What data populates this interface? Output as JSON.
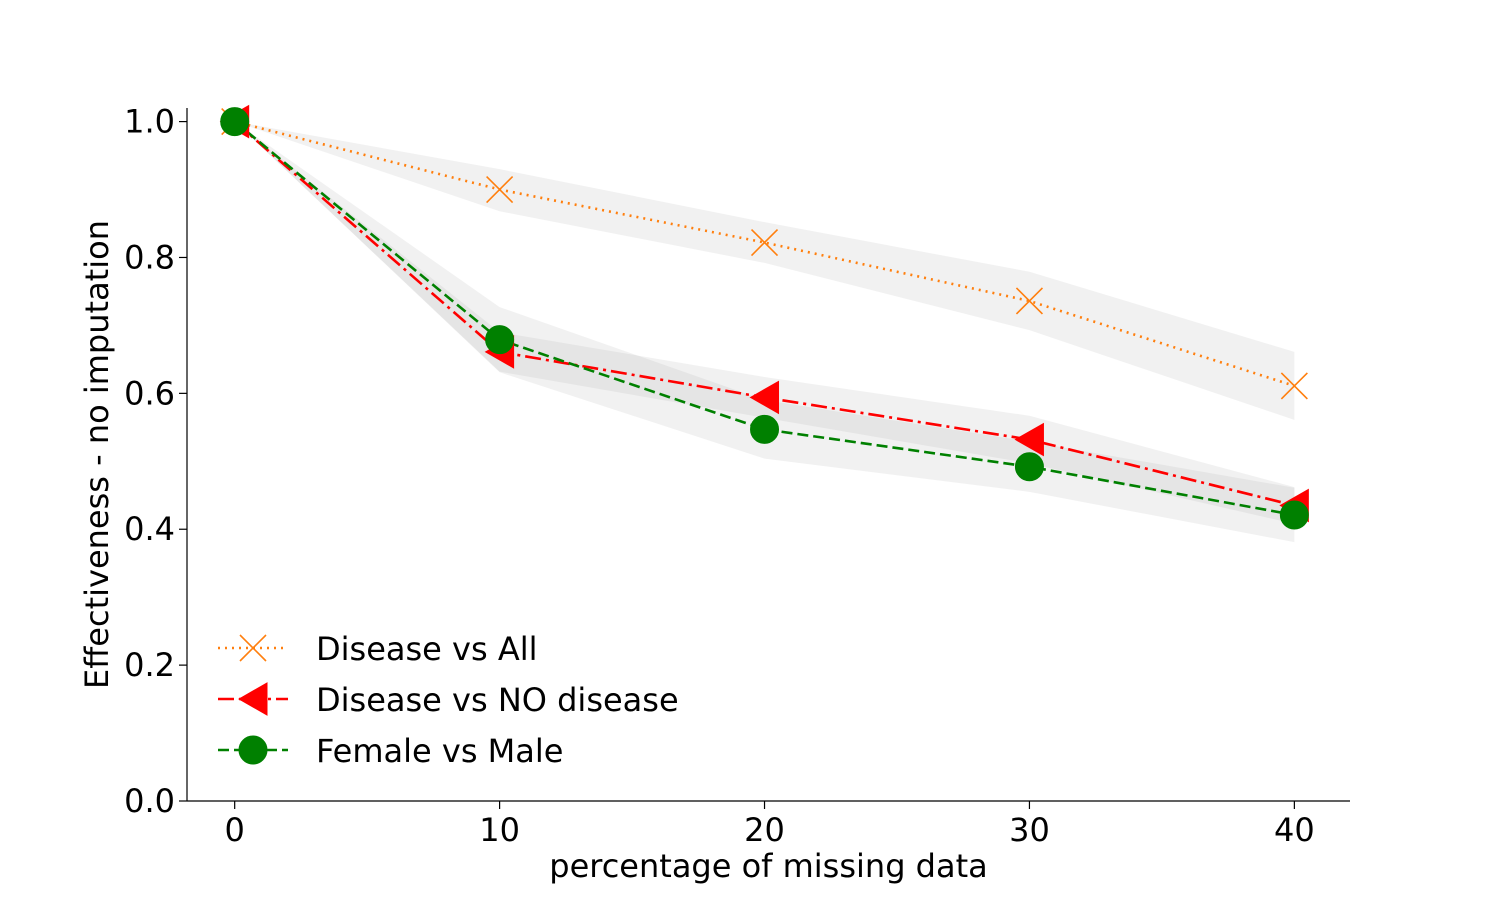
{
  "chart_data": {
    "type": "line",
    "title": "",
    "xlabel": "percentage of missing data",
    "ylabel": "Effectiveness - no imputation",
    "x": [
      0,
      10,
      20,
      30,
      40
    ],
    "x_ticks": [
      "0",
      "10",
      "20",
      "30",
      "40"
    ],
    "y_ticks": [
      "0.0",
      "0.2",
      "0.4",
      "0.6",
      "0.8",
      "1.0"
    ],
    "xlim": [
      -1.8,
      42.1
    ],
    "ylim": [
      0.0,
      1.02
    ],
    "grid": false,
    "legend_position": "lower-left",
    "series": [
      {
        "name": "Disease vs All",
        "values": [
          1.0,
          0.9,
          0.822,
          0.736,
          0.611
        ],
        "band_low": [
          1.0,
          0.868,
          0.792,
          0.693,
          0.561
        ],
        "band_high": [
          1.0,
          0.93,
          0.852,
          0.779,
          0.661
        ],
        "color": "#ff7f0e",
        "line_style": "dotted",
        "marker": "x-icon"
      },
      {
        "name": "Disease vs NO disease",
        "values": [
          1.0,
          0.661,
          0.594,
          0.532,
          0.435
        ],
        "band_low": [
          1.0,
          0.632,
          0.564,
          0.497,
          0.408
        ],
        "band_high": [
          1.0,
          0.69,
          0.624,
          0.567,
          0.462
        ],
        "color": "#ff0000",
        "line_style": "dash-dot",
        "marker": "left-triangle-icon"
      },
      {
        "name": "Female vs Male",
        "values": [
          1.0,
          0.679,
          0.547,
          0.492,
          0.421
        ],
        "band_low": [
          1.0,
          0.631,
          0.504,
          0.455,
          0.381
        ],
        "band_high": [
          1.0,
          0.727,
          0.59,
          0.529,
          0.461
        ],
        "color": "#008000",
        "line_style": "dashed",
        "marker": "circle-icon"
      }
    ]
  }
}
